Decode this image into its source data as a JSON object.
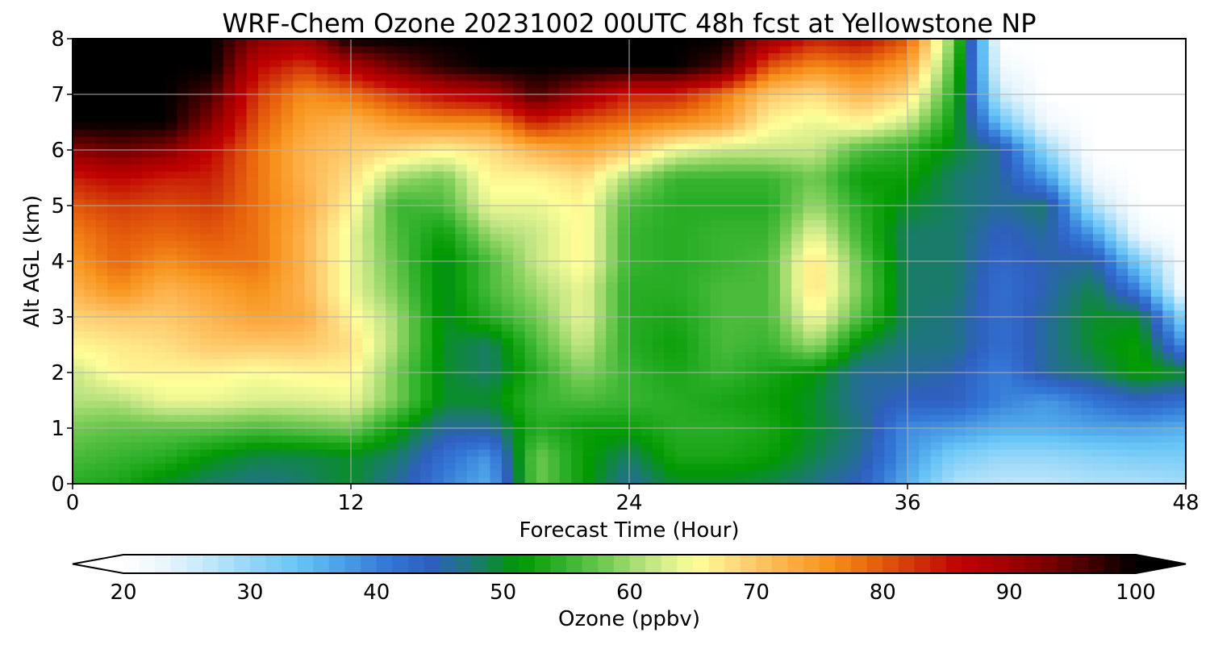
{
  "chart_data": {
    "type": "heatmap",
    "title": "WRF-Chem Ozone  20231002 00UTC 48h fcst at Yellowstone NP",
    "xlabel": "Forecast Time (Hour)",
    "ylabel": "Alt AGL (km)",
    "xlim": [
      0,
      48
    ],
    "ylim": [
      0,
      8
    ],
    "xticks": [
      "0",
      "12",
      "24",
      "36",
      "48"
    ],
    "yticks": [
      "0",
      "1",
      "2",
      "3",
      "4",
      "5",
      "6",
      "7",
      "8"
    ],
    "grid": true,
    "x": [
      0,
      2,
      4,
      6,
      8,
      10,
      12,
      14,
      16,
      18,
      20,
      22,
      24,
      26,
      28,
      30,
      32,
      34,
      36,
      38,
      40,
      42,
      44,
      46,
      48
    ],
    "y": [
      0,
      0.5,
      1,
      1.5,
      2,
      2.5,
      3,
      3.5,
      4,
      4.5,
      5,
      5.5,
      6,
      6.5,
      7,
      7.5,
      8
    ],
    "z": [
      [
        54,
        53,
        50,
        48,
        47,
        48,
        50,
        46,
        40,
        36,
        58,
        52,
        46,
        50,
        50,
        49,
        47,
        44,
        36,
        28,
        27,
        27,
        28,
        28,
        29
      ],
      [
        56,
        55,
        54,
        51,
        49,
        49,
        50,
        48,
        42,
        38,
        58,
        52,
        48,
        53,
        53,
        52,
        49,
        46,
        38,
        32,
        30,
        30,
        31,
        32,
        32
      ],
      [
        58,
        57,
        57,
        57,
        56,
        57,
        58,
        52,
        46,
        46,
        54,
        52,
        52,
        54,
        54,
        53,
        50,
        47,
        39,
        38,
        36,
        36,
        37,
        37,
        36
      ],
      [
        61,
        61,
        64,
        64,
        63,
        63,
        64,
        58,
        50,
        50,
        55,
        56,
        55,
        54,
        53,
        52,
        50,
        46,
        44,
        44,
        40,
        38,
        41,
        44,
        42
      ],
      [
        62,
        66,
        66,
        66,
        65,
        66,
        66,
        58,
        50,
        48,
        54,
        59,
        55,
        53,
        55,
        53,
        51,
        46,
        46,
        45,
        40,
        46,
        48,
        52,
        50
      ],
      [
        66,
        67,
        68,
        70,
        70,
        70,
        68,
        60,
        50,
        48,
        56,
        62,
        54,
        52,
        56,
        55,
        60,
        50,
        47,
        47,
        42,
        46,
        50,
        52,
        38
      ],
      [
        69,
        70,
        70,
        72,
        74,
        73,
        66,
        60,
        50,
        54,
        58,
        64,
        54,
        53,
        56,
        56,
        65,
        56,
        48,
        47,
        42,
        46,
        50,
        50,
        30
      ],
      [
        72,
        76,
        72,
        74,
        76,
        72,
        64,
        58,
        50,
        56,
        60,
        64,
        54,
        54,
        56,
        56,
        68,
        58,
        48,
        48,
        42,
        45,
        49,
        40,
        20
      ],
      [
        75,
        79,
        76,
        78,
        78,
        72,
        64,
        57,
        50,
        56,
        62,
        66,
        55,
        54,
        55,
        56,
        68,
        57,
        48,
        48,
        43,
        45,
        46,
        32,
        20
      ],
      [
        77,
        80,
        79,
        80,
        78,
        72,
        64,
        56,
        52,
        60,
        62,
        66,
        55,
        54,
        55,
        55,
        64,
        55,
        48,
        48,
        44,
        46,
        38,
        22,
        20
      ],
      [
        80,
        82,
        81,
        82,
        78,
        73,
        66,
        55,
        56,
        64,
        64,
        66,
        56,
        54,
        54,
        54,
        60,
        54,
        50,
        48,
        46,
        48,
        28,
        20,
        20
      ],
      [
        84,
        86,
        84,
        84,
        78,
        72,
        68,
        60,
        58,
        66,
        66,
        68,
        60,
        55,
        55,
        55,
        58,
        52,
        52,
        48,
        46,
        38,
        22,
        20,
        20
      ],
      [
        92,
        94,
        92,
        86,
        78,
        72,
        70,
        68,
        66,
        68,
        72,
        74,
        70,
        64,
        62,
        62,
        62,
        56,
        54,
        50,
        46,
        30,
        20,
        20,
        20
      ],
      [
        100,
        100,
        100,
        92,
        80,
        74,
        72,
        75,
        76,
        76,
        84,
        80,
        78,
        76,
        74,
        66,
        64,
        66,
        62,
        52,
        34,
        22,
        20,
        20,
        20
      ],
      [
        100,
        100,
        100,
        96,
        82,
        76,
        78,
        82,
        86,
        88,
        96,
        90,
        84,
        84,
        78,
        70,
        68,
        72,
        68,
        54,
        26,
        20,
        20,
        20,
        20
      ],
      [
        100,
        100,
        100,
        100,
        86,
        82,
        88,
        94,
        98,
        100,
        100,
        100,
        100,
        100,
        96,
        80,
        76,
        78,
        74,
        56,
        22,
        20,
        20,
        20,
        20
      ],
      [
        100,
        100,
        100,
        100,
        92,
        90,
        100,
        100,
        100,
        100,
        100,
        100,
        100,
        100,
        100,
        90,
        84,
        86,
        80,
        58,
        20,
        20,
        20,
        20,
        20
      ]
    ],
    "colorbar": {
      "label": "Ozone  (ppbv)",
      "min": 20,
      "max": 100,
      "ticks": [
        "20",
        "30",
        "40",
        "50",
        "60",
        "70",
        "80",
        "90",
        "100"
      ],
      "extend": "both",
      "colors": [
        "#ffffff",
        "#e6f5fc",
        "#bfe6fa",
        "#8fd4f8",
        "#66c4f6",
        "#4a9fe6",
        "#3377d6",
        "#2f5fbf",
        "#1a7a6e",
        "#009900",
        "#33b22e",
        "#77cc55",
        "#c4e685",
        "#ffff99",
        "#fed67a",
        "#fdb24c",
        "#f7941d",
        "#e8640d",
        "#d0340a",
        "#c00000",
        "#a50000",
        "#7a0000",
        "#400000",
        "#000000"
      ]
    }
  }
}
